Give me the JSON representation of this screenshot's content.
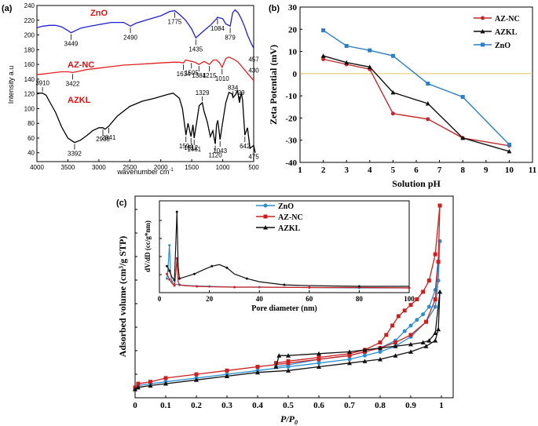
{
  "chart_data": [
    {
      "panel": "(a)",
      "type": "line",
      "title": "",
      "xlabel": "wavenumber cm",
      "xlabel_sup": "-1",
      "ylabel": "Intensity a.u",
      "xlim": [
        4000,
        500
      ],
      "ylim": [
        28,
        240
      ],
      "xticks": [
        4000,
        3500,
        3000,
        2500,
        2000,
        1500,
        1000,
        500
      ],
      "yticks": [
        40,
        60,
        80,
        100,
        120,
        140,
        160,
        180,
        200,
        220,
        240
      ],
      "series": [
        {
          "name": "ZnO",
          "color": "#1f1fd0",
          "x": [
            4000,
            3900,
            3800,
            3700,
            3600,
            3500,
            3449,
            3400,
            3300,
            3200,
            3000,
            2800,
            2600,
            2490,
            2400,
            2200,
            2000,
            1850,
            1775,
            1700,
            1600,
            1500,
            1435,
            1380,
            1300,
            1200,
            1100,
            1084,
            1000,
            950,
            879,
            840,
            800,
            750,
            700,
            650,
            600,
            550,
            500
          ],
          "y": [
            210,
            212,
            213,
            213,
            211,
            206,
            203,
            205,
            209,
            211,
            214,
            217,
            217,
            212,
            216,
            221,
            226,
            232,
            233,
            228,
            220,
            208,
            196,
            200,
            206,
            213,
            222,
            224,
            222,
            215,
            212,
            230,
            234,
            230,
            222,
            212,
            200,
            190,
            182
          ]
        },
        {
          "name": "AZ-NC",
          "color": "#e02020",
          "x": [
            4000,
            3900,
            3800,
            3700,
            3600,
            3500,
            3422,
            3300,
            3200,
            3000,
            2800,
            2600,
            2400,
            2200,
            2000,
            1800,
            1700,
            1634,
            1600,
            1505,
            1450,
            1384,
            1300,
            1215,
            1150,
            1100,
            1050,
            1010,
            950,
            900,
            850,
            800,
            750,
            700,
            650,
            600,
            550,
            500
          ],
          "y": [
            146,
            147,
            148,
            149,
            150,
            150,
            149,
            151,
            153,
            155,
            157,
            159,
            160,
            161,
            162,
            163,
            163,
            162,
            166,
            164,
            163,
            160,
            164,
            160,
            166,
            166,
            162,
            156,
            168,
            170,
            168,
            166,
            163,
            158,
            153,
            148,
            143,
            138
          ]
        },
        {
          "name": "AZKL",
          "color": "#000000",
          "x": [
            4000,
            3910,
            3850,
            3800,
            3700,
            3600,
            3500,
            3392,
            3300,
            3200,
            3100,
            3000,
            2935,
            2900,
            2841,
            2700,
            2500,
            2300,
            2100,
            1900,
            1800,
            1700,
            1650,
            1600,
            1594,
            1560,
            1512,
            1480,
            1461,
            1420,
            1380,
            1329,
            1300,
            1250,
            1200,
            1160,
            1120,
            1100,
            1080,
            1043,
            1000,
            950,
            900,
            850,
            834,
            800,
            760,
            729,
            700,
            680,
            642,
            600,
            560,
            500,
            475
          ],
          "y": [
            121,
            121,
            118,
            110,
            95,
            75,
            60,
            54,
            57,
            63,
            70,
            74,
            74,
            72,
            76,
            90,
            103,
            110,
            114,
            119,
            121,
            114,
            100,
            68,
            64,
            80,
            62,
            78,
            60,
            82,
            104,
            108,
            96,
            82,
            62,
            70,
            52,
            78,
            84,
            58,
            82,
            108,
            122,
            120,
            115,
            118,
            124,
            108,
            122,
            112,
            64,
            74,
            46,
            50,
            40
          ]
        }
      ],
      "annotations": [
        {
          "text": "3449",
          "series": "ZnO",
          "x": 3449
        },
        {
          "text": "2490",
          "series": "ZnO",
          "x": 2490
        },
        {
          "text": "1775",
          "series": "ZnO",
          "x": 1775
        },
        {
          "text": "1435",
          "series": "ZnO",
          "x": 1435
        },
        {
          "text": "1084",
          "series": "ZnO",
          "x": 1084
        },
        {
          "text": "879",
          "series": "ZnO",
          "x": 879
        },
        {
          "text": "457",
          "series": "ZnO",
          "x": 457
        },
        {
          "text": "3422",
          "series": "AZ-NC",
          "x": 3422
        },
        {
          "text": "1634",
          "series": "AZ-NC",
          "x": 1634
        },
        {
          "text": "1505",
          "series": "AZ-NC",
          "x": 1505
        },
        {
          "text": "1384",
          "series": "AZ-NC",
          "x": 1384
        },
        {
          "text": "1215",
          "series": "AZ-NC",
          "x": 1215
        },
        {
          "text": "1010",
          "series": "AZ-NC",
          "x": 1010
        },
        {
          "text": "430",
          "series": "AZ-NC",
          "x": 430
        },
        {
          "text": "3910",
          "series": "AZKL",
          "x": 3910
        },
        {
          "text": "3392",
          "series": "AZKL",
          "x": 3392
        },
        {
          "text": "2935",
          "series": "AZKL",
          "x": 2935
        },
        {
          "text": "2841",
          "series": "AZKL",
          "x": 2841
        },
        {
          "text": "1594",
          "series": "AZKL",
          "x": 1594
        },
        {
          "text": "1512",
          "series": "AZKL",
          "x": 1512
        },
        {
          "text": "1461",
          "series": "AZKL",
          "x": 1461
        },
        {
          "text": "1329",
          "series": "AZKL",
          "x": 1329
        },
        {
          "text": "1120",
          "series": "AZKL",
          "x": 1120
        },
        {
          "text": "1043",
          "series": "AZKL",
          "x": 1043
        },
        {
          "text": "834",
          "series": "AZKL",
          "x": 834
        },
        {
          "text": "729",
          "series": "AZKL",
          "x": 729
        },
        {
          "text": "642",
          "series": "AZKL",
          "x": 642
        },
        {
          "text": "475",
          "series": "AZKL",
          "x": 475
        }
      ],
      "series_labels": [
        "ZnO",
        "AZ-NC",
        "AZKL"
      ]
    },
    {
      "panel": "(b)",
      "type": "line",
      "xlabel": "Solution pH",
      "ylabel": "Zeta Potential (mV)",
      "xlim": [
        1,
        11
      ],
      "ylim": [
        -40,
        30
      ],
      "xticks": [
        1,
        2,
        3,
        4,
        5,
        6,
        7,
        8,
        9,
        10,
        11
      ],
      "yticks": [
        -40,
        -30,
        -20,
        -10,
        0,
        10,
        20,
        30
      ],
      "zero_line": true,
      "legend": "top-right",
      "series": [
        {
          "name": "AZ-NC",
          "color": "#c0282d",
          "marker": "circle",
          "x": [
            2,
            3,
            4,
            5,
            6.5,
            8,
            10
          ],
          "y": [
            6.5,
            4.2,
            2.0,
            -18.0,
            -20.5,
            -29.0,
            -32.5
          ]
        },
        {
          "name": "AZKL",
          "color": "#111111",
          "marker": "triangle",
          "x": [
            2,
            3,
            4,
            5,
            6.5,
            8,
            10
          ],
          "y": [
            8.0,
            5.0,
            3.0,
            -8.5,
            -13.5,
            -29.0,
            -35.0
          ]
        },
        {
          "name": "ZnO",
          "color": "#2a7ec4",
          "marker": "square",
          "x": [
            2,
            3,
            4,
            5,
            6.5,
            8,
            10
          ],
          "y": [
            19.5,
            12.5,
            10.5,
            8.0,
            -4.5,
            -10.5,
            -32.0
          ]
        }
      ]
    },
    {
      "panel": "(c)",
      "type": "line",
      "xlabel": "P/P",
      "xlabel_sub": "0",
      "ylabel": "Adsorbed volume (cm³/g STP)",
      "xlim": [
        0,
        1
      ],
      "ylim": [
        0,
        1
      ],
      "xticks": [
        0,
        0.1,
        0.2,
        0.3,
        0.4,
        0.5,
        0.6,
        0.7,
        0.8,
        0.9,
        1
      ],
      "xtick_labels": [
        "0",
        "0.1",
        "0.2",
        "0.3",
        "0.4",
        "0.5",
        "0.6",
        "0.7",
        "0.8",
        "0.9",
        "1"
      ],
      "legend": "top-left",
      "series": [
        {
          "name": "ZnO",
          "color": "#2a8fd0",
          "marker": "circle",
          "ads_x": [
            0.0,
            0.01,
            0.05,
            0.1,
            0.2,
            0.3,
            0.4,
            0.5,
            0.6,
            0.7,
            0.75,
            0.8,
            0.85,
            0.9,
            0.95,
            0.98,
            0.99,
            0.995
          ],
          "ads_y": [
            0.02,
            0.04,
            0.05,
            0.06,
            0.08,
            0.1,
            0.12,
            0.14,
            0.16,
            0.18,
            0.2,
            0.22,
            0.25,
            0.3,
            0.38,
            0.46,
            0.6,
            0.81
          ],
          "des_x": [
            0.995,
            0.98,
            0.96,
            0.94,
            0.92,
            0.9,
            0.88,
            0.85,
            0.8,
            0.75,
            0.7,
            0.6,
            0.5,
            0.46
          ],
          "des_y": [
            0.81,
            0.55,
            0.46,
            0.42,
            0.39,
            0.36,
            0.33,
            0.28,
            0.24,
            0.22,
            0.2,
            0.18,
            0.15,
            0.14
          ]
        },
        {
          "name": "AZ-NC",
          "color": "#cc2020",
          "marker": "square",
          "ads_x": [
            0.0,
            0.01,
            0.05,
            0.1,
            0.2,
            0.3,
            0.4,
            0.5,
            0.6,
            0.7,
            0.75,
            0.8,
            0.85,
            0.9,
            0.95,
            0.98,
            0.99,
            0.995
          ],
          "ads_y": [
            0.03,
            0.05,
            0.06,
            0.08,
            0.1,
            0.12,
            0.14,
            0.16,
            0.18,
            0.2,
            0.22,
            0.24,
            0.27,
            0.31,
            0.38,
            0.5,
            0.7,
            1.0
          ],
          "des_x": [
            0.995,
            0.98,
            0.96,
            0.94,
            0.92,
            0.9,
            0.88,
            0.86,
            0.84,
            0.82,
            0.8,
            0.75,
            0.7,
            0.6,
            0.5,
            0.46
          ],
          "des_y": [
            1.0,
            0.74,
            0.6,
            0.54,
            0.5,
            0.47,
            0.44,
            0.41,
            0.36,
            0.31,
            0.27,
            0.23,
            0.21,
            0.19,
            0.17,
            0.16
          ]
        },
        {
          "name": "AZKL",
          "color": "#111111",
          "marker": "triangle",
          "ads_x": [
            0.0,
            0.01,
            0.05,
            0.1,
            0.2,
            0.3,
            0.4,
            0.5,
            0.6,
            0.7,
            0.75,
            0.8,
            0.85,
            0.9,
            0.95,
            0.98,
            0.99,
            0.995
          ],
          "ads_y": [
            0.02,
            0.03,
            0.04,
            0.05,
            0.07,
            0.09,
            0.11,
            0.12,
            0.14,
            0.16,
            0.17,
            0.18,
            0.2,
            0.22,
            0.25,
            0.28,
            0.34,
            0.54
          ],
          "des_x": [
            0.995,
            0.98,
            0.96,
            0.94,
            0.9,
            0.85,
            0.8,
            0.75,
            0.7,
            0.6,
            0.5,
            0.47,
            0.46
          ],
          "des_y": [
            0.54,
            0.32,
            0.28,
            0.27,
            0.26,
            0.25,
            0.24,
            0.23,
            0.22,
            0.21,
            0.2,
            0.2,
            0.14
          ]
        }
      ],
      "inset": {
        "xlabel": "Pore diameter (nm)",
        "ylabel": "dV/dD (cc/g*nm)",
        "xlim": [
          0,
          100
        ],
        "ylim": [
          0,
          1
        ],
        "xticks": [
          0,
          20,
          40,
          60,
          80,
          100
        ],
        "series": [
          {
            "name": "ZnO",
            "color": "#2a8fd0",
            "x": [
              3,
              3.5,
              4,
              4.5,
              5,
              6,
              8,
              12,
              20,
              30,
              40,
              60,
              80,
              100
            ],
            "y": [
              0.14,
              0.3,
              0.57,
              0.2,
              0.1,
              0.07,
              0.06,
              0.05,
              0.04,
              0.03,
              0.03,
              0.025,
              0.02,
              0.02
            ]
          },
          {
            "name": "AZ-NC",
            "color": "#cc2020",
            "x": [
              3,
              3.5,
              4,
              5,
              6,
              6.5,
              7,
              7.5,
              8,
              10,
              15,
              20,
              30,
              40,
              60,
              80,
              100
            ],
            "y": [
              0.2,
              0.17,
              0.13,
              0.08,
              0.05,
              0.2,
              0.4,
              0.1,
              0.06,
              0.05,
              0.04,
              0.035,
              0.03,
              0.03,
              0.025,
              0.025,
              0.02
            ]
          },
          {
            "name": "AZKL",
            "color": "#111111",
            "x": [
              3,
              3.5,
              4,
              5,
              6,
              6.5,
              7,
              7.5,
              8,
              10,
              14,
              18,
              21,
              24,
              27,
              30,
              35,
              40,
              50,
              60,
              80,
              100
            ],
            "y": [
              0.3,
              0.28,
              0.24,
              0.16,
              0.12,
              0.55,
              1.0,
              0.3,
              0.14,
              0.16,
              0.2,
              0.26,
              0.3,
              0.32,
              0.28,
              0.2,
              0.14,
              0.1,
              0.06,
              0.05,
              0.04,
              0.04
            ]
          }
        ]
      }
    }
  ]
}
